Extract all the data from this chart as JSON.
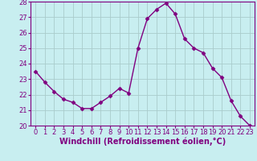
{
  "x": [
    0,
    1,
    2,
    3,
    4,
    5,
    6,
    7,
    8,
    9,
    10,
    11,
    12,
    13,
    14,
    15,
    16,
    17,
    18,
    19,
    20,
    21,
    22,
    23
  ],
  "y": [
    23.5,
    22.8,
    22.2,
    21.7,
    21.5,
    21.1,
    21.1,
    21.5,
    21.9,
    22.4,
    22.1,
    25.0,
    26.9,
    27.5,
    27.9,
    27.2,
    25.6,
    25.0,
    24.7,
    23.7,
    23.1,
    21.6,
    20.6,
    20.0
  ],
  "line_color": "#800080",
  "marker": "D",
  "marker_size": 2.5,
  "bg_color": "#c8eef0",
  "grid_color": "#aacccc",
  "xlabel": "Windchill (Refroidissement éolien,°C)",
  "xlabel_fontsize": 7,
  "ylim": [
    20,
    28
  ],
  "xlim": [
    -0.5,
    23.5
  ],
  "yticks": [
    20,
    21,
    22,
    23,
    24,
    25,
    26,
    27,
    28
  ],
  "xticks": [
    0,
    1,
    2,
    3,
    4,
    5,
    6,
    7,
    8,
    9,
    10,
    11,
    12,
    13,
    14,
    15,
    16,
    17,
    18,
    19,
    20,
    21,
    22,
    23
  ],
  "tick_fontsize": 6,
  "line_width": 1.0,
  "spine_color": "#800080"
}
